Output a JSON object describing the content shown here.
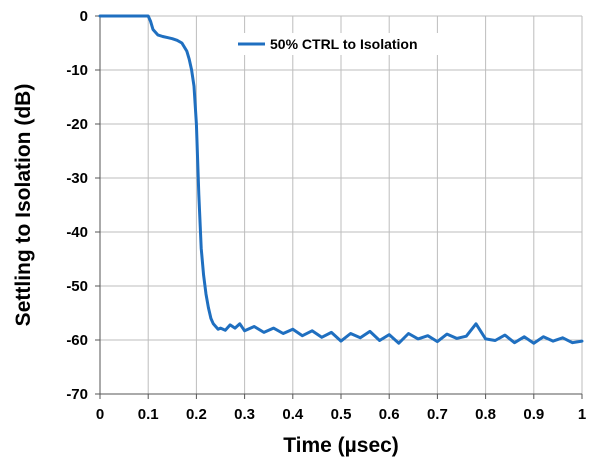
{
  "chart_data": {
    "type": "line",
    "title": "",
    "xlabel": "Time (µsec)",
    "ylabel": "Settling to Isolation  (dB)",
    "xlim": [
      0,
      1
    ],
    "ylim": [
      -70,
      0
    ],
    "x_ticks": [
      "0",
      "0.1",
      "0.2",
      "0.3",
      "0.4",
      "0.5",
      "0.6",
      "0.7",
      "0.8",
      "0.9",
      "1"
    ],
    "y_ticks": [
      "0",
      "-10",
      "-20",
      "-30",
      "-40",
      "-50",
      "-60",
      "-70"
    ],
    "grid": true,
    "legend_position": "top-right",
    "series": [
      {
        "name": "50% CTRL to Isolation",
        "color": "#1f6fc0",
        "x": [
          0,
          0.1,
          0.105,
          0.11,
          0.12,
          0.13,
          0.14,
          0.15,
          0.16,
          0.17,
          0.18,
          0.185,
          0.19,
          0.195,
          0.2,
          0.205,
          0.21,
          0.215,
          0.22,
          0.225,
          0.23,
          0.235,
          0.24,
          0.245,
          0.25,
          0.26,
          0.27,
          0.28,
          0.29,
          0.3,
          0.32,
          0.34,
          0.36,
          0.38,
          0.4,
          0.42,
          0.44,
          0.46,
          0.48,
          0.5,
          0.52,
          0.54,
          0.56,
          0.58,
          0.6,
          0.62,
          0.64,
          0.66,
          0.68,
          0.7,
          0.72,
          0.74,
          0.76,
          0.78,
          0.8,
          0.82,
          0.84,
          0.86,
          0.88,
          0.9,
          0.92,
          0.94,
          0.96,
          0.98,
          1.0
        ],
        "values": [
          0,
          0,
          -1,
          -2.5,
          -3.5,
          -3.8,
          -4,
          -4.2,
          -4.5,
          -5,
          -6.5,
          -8,
          -10,
          -13,
          -20,
          -33,
          -43,
          -48,
          -51.5,
          -54,
          -56,
          -57,
          -57.5,
          -58,
          -57.8,
          -58.2,
          -57.2,
          -57.8,
          -57,
          -58.3,
          -57.5,
          -58.6,
          -57.8,
          -58.8,
          -58,
          -59.2,
          -58.3,
          -59.5,
          -58.6,
          -60.2,
          -58.8,
          -59.6,
          -58.4,
          -60.1,
          -59,
          -60.6,
          -58.8,
          -59.8,
          -59.2,
          -60.3,
          -58.9,
          -59.7,
          -59.3,
          -57,
          -59.8,
          -60.1,
          -59.1,
          -60.5,
          -59.4,
          -60.6,
          -59.4,
          -60.2,
          -59.6,
          -60.5,
          -60.2
        ]
      }
    ]
  }
}
